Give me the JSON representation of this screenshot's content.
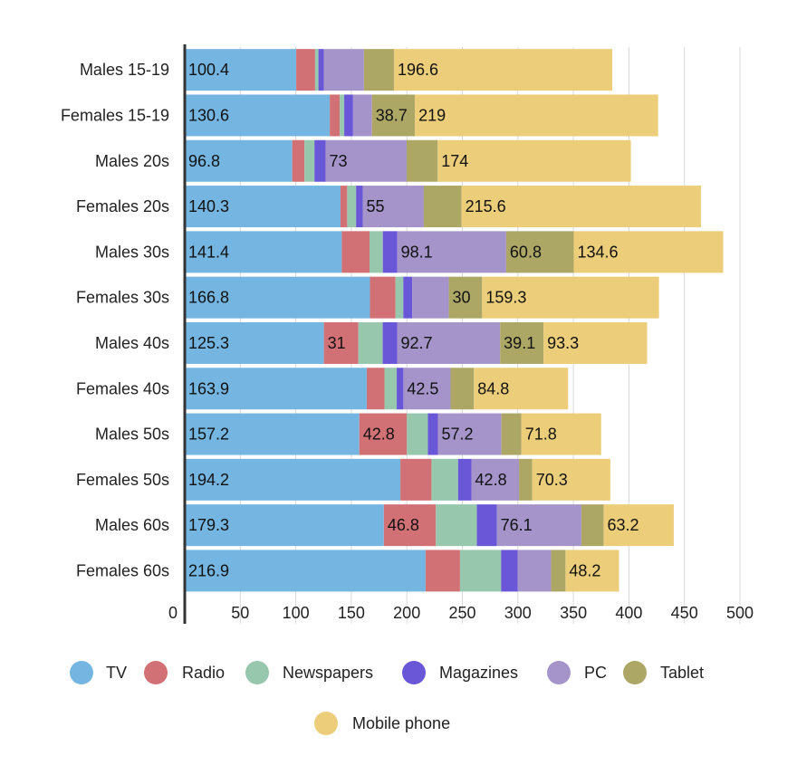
{
  "chart_data": {
    "type": "bar",
    "orientation": "horizontal",
    "stacked": true,
    "title": "",
    "xlabel": "",
    "ylabel": "",
    "xlim": [
      0,
      500
    ],
    "ticks": [
      0,
      50,
      100,
      150,
      200,
      250,
      300,
      350,
      400,
      450,
      500
    ],
    "grid": true,
    "legend_position": "bottom",
    "categories": [
      "Males 15-19",
      "Females 15-19",
      "Males 20s",
      "Females 20s",
      "Males 30s",
      "Females 30s",
      "Males 40s",
      "Females 40s",
      "Males 50s",
      "Females 50s",
      "Males 60s",
      "Females 60s"
    ],
    "series": [
      {
        "name": "TV",
        "color": "#74b6e1",
        "values": [
          100.4,
          130.6,
          96.8,
          140.3,
          141.4,
          166.8,
          125.3,
          163.9,
          157.2,
          194.2,
          179.3,
          216.9
        ],
        "labels": [
          "100.4",
          "130.6",
          "96.8",
          "140.3",
          "141.4",
          "166.8",
          "125.3",
          "163.9",
          "157.2",
          "194.2",
          "179.3",
          "216.9"
        ]
      },
      {
        "name": "Radio",
        "color": "#d27175",
        "values": [
          17,
          9,
          11,
          6,
          25,
          23,
          31,
          16,
          42.8,
          28,
          46.8,
          31
        ],
        "labels": [
          "",
          "",
          "",
          "",
          "",
          "",
          "31",
          "",
          "42.8",
          "",
          "46.8",
          ""
        ]
      },
      {
        "name": "Newspapers",
        "color": "#97c7ad",
        "values": [
          3,
          4,
          9,
          8,
          12,
          7,
          22,
          11,
          19,
          24,
          37,
          37
        ],
        "labels": [
          "",
          "",
          "",
          "",
          "",
          "",
          "",
          "",
          "",
          "",
          "",
          ""
        ]
      },
      {
        "name": "Magazines",
        "color": "#6a57d8",
        "values": [
          5,
          8,
          10,
          6,
          13,
          8,
          13,
          6,
          9,
          12,
          18,
          15
        ],
        "labels": [
          "",
          "",
          "",
          "",
          "",
          "",
          "",
          "",
          "",
          "",
          "",
          ""
        ]
      },
      {
        "name": "PC",
        "color": "#a594c9",
        "values": [
          36,
          17,
          73,
          55,
          98.1,
          33,
          92.7,
          42.5,
          57.2,
          42.8,
          76.1,
          30
        ],
        "labels": [
          "",
          "",
          "73",
          "55",
          "98.1",
          "",
          "92.7",
          "42.5",
          "57.2",
          "42.8",
          "76.1",
          ""
        ]
      },
      {
        "name": "Tablet",
        "color": "#ada766",
        "values": [
          27,
          38.7,
          28,
          34,
          60.8,
          30,
          39.1,
          21,
          18,
          12,
          20,
          13
        ],
        "labels": [
          "",
          "38.7",
          "",
          "",
          "60.8",
          "30",
          "39.1",
          "",
          "",
          "",
          "",
          ""
        ]
      },
      {
        "name": "Mobile phone",
        "color": "#ecce7a",
        "values": [
          196.6,
          219,
          174,
          215.6,
          134.6,
          159.3,
          93.3,
          84.8,
          71.8,
          70.3,
          63.2,
          48.2
        ],
        "labels": [
          "196.6",
          "219",
          "174",
          "215.6",
          "134.6",
          "159.3",
          "93.3",
          "84.8",
          "71.8",
          "70.3",
          "63.2",
          "48.2"
        ]
      }
    ]
  }
}
